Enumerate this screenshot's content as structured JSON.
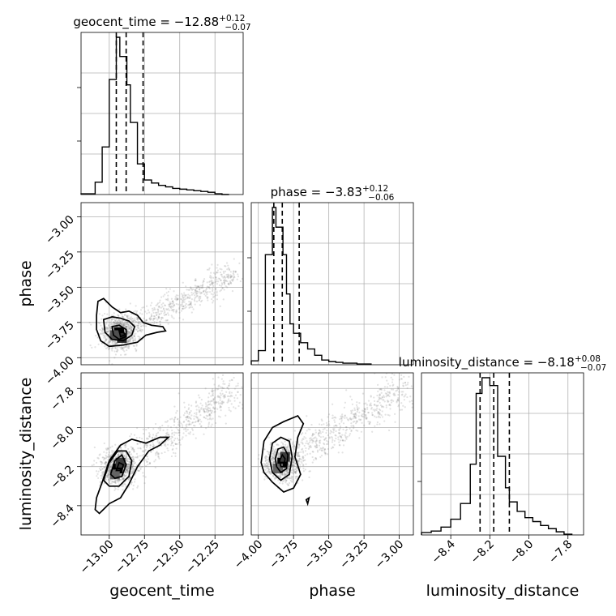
{
  "chart_data": {
    "type": "corner",
    "parameters": [
      "geocent_time",
      "phase",
      "luminosity_distance"
    ],
    "axis_labels": {
      "geocent_time": "geocent_time",
      "phase": "phase",
      "luminosity_distance": "luminosity_distance"
    },
    "titles": [
      {
        "name": "geocent_time",
        "base": "geocent_time = −12.88",
        "plus": "+0.12",
        "minus": "−0.07"
      },
      {
        "name": "phase",
        "base": "phase = −3.83",
        "plus": "+0.12",
        "minus": "−0.06"
      },
      {
        "name": "luminosity_distance",
        "base": "luminosity_distance = −8.18",
        "plus": "+0.08",
        "minus": "−0.07"
      }
    ],
    "ranges": {
      "geocent_time": [
        -13.2,
        -12.05
      ],
      "phase": [
        -4.05,
        -2.9
      ],
      "luminosity_distance": [
        -8.55,
        -7.72
      ]
    },
    "ticks": {
      "geocent_time": [
        {
          "value": -13.0,
          "label": "−13.00"
        },
        {
          "value": -12.75,
          "label": "−12.75"
        },
        {
          "value": -12.5,
          "label": "−12.50"
        },
        {
          "value": -12.25,
          "label": "−12.25"
        }
      ],
      "phase": [
        {
          "value": -4.0,
          "label": "−4.00"
        },
        {
          "value": -3.75,
          "label": "−3.75"
        },
        {
          "value": -3.5,
          "label": "−3.50"
        },
        {
          "value": -3.25,
          "label": "−3.25"
        },
        {
          "value": -3.0,
          "label": "−3.00"
        }
      ],
      "luminosity_distance": [
        {
          "value": -8.4,
          "label": "−8.4"
        },
        {
          "value": -8.2,
          "label": "−8.2"
        },
        {
          "value": -8.0,
          "label": "−8.0"
        },
        {
          "value": -7.8,
          "label": "−7.8"
        }
      ]
    },
    "quantiles": {
      "geocent_time": [
        -12.95,
        -12.88,
        -12.76
      ],
      "phase": [
        -3.89,
        -3.83,
        -3.71
      ],
      "luminosity_distance": [
        -8.25,
        -8.18,
        -8.1
      ]
    },
    "histograms": {
      "geocent_time": {
        "edges": [
          -13.2,
          -13.1,
          -13.05,
          -13.0,
          -12.95,
          -12.925,
          -12.875,
          -12.85,
          -12.8,
          -12.75,
          -12.7,
          -12.65,
          -12.6,
          -12.55,
          -12.5,
          -12.45,
          -12.4,
          -12.35,
          -12.3,
          -12.25,
          -12.2,
          -12.15
        ],
        "counts": [
          1,
          16,
          62,
          150,
          205,
          180,
          143,
          94,
          40,
          19,
          15,
          12,
          10,
          8,
          7,
          6,
          5,
          4,
          3,
          1,
          0
        ]
      },
      "phase": {
        "edges": [
          -4.05,
          -4.0,
          -3.95,
          -3.9,
          -3.875,
          -3.825,
          -3.8,
          -3.775,
          -3.75,
          -3.7,
          -3.65,
          -3.6,
          -3.55,
          -3.5,
          -3.45,
          -3.4,
          -3.35,
          -3.3,
          -3.25,
          -3.2
        ],
        "counts": [
          5,
          18,
          140,
          200,
          175,
          140,
          90,
          52,
          40,
          28,
          20,
          12,
          6,
          4,
          3,
          2,
          2,
          1,
          1
        ]
      },
      "luminosity_distance": {
        "edges": [
          -8.55,
          -8.5,
          -8.45,
          -8.4,
          -8.35,
          -8.3,
          -8.27,
          -8.24,
          -8.2,
          -8.16,
          -8.12,
          -8.1,
          -8.06,
          -8.02,
          -7.98,
          -7.94,
          -7.9,
          -7.86,
          -7.82,
          -7.78
        ],
        "counts": [
          3,
          5,
          10,
          20,
          40,
          90,
          180,
          200,
          190,
          100,
          60,
          42,
          30,
          22,
          17,
          12,
          8,
          4,
          1
        ]
      }
    },
    "contours": {
      "geocent_time|phase": [
        [
          [
            -13.08,
            -3.6
          ],
          [
            -13.04,
            -3.58
          ],
          [
            -12.98,
            -3.64
          ],
          [
            -12.92,
            -3.68
          ],
          [
            -12.86,
            -3.67
          ],
          [
            -12.8,
            -3.7
          ],
          [
            -12.76,
            -3.75
          ],
          [
            -12.7,
            -3.77
          ],
          [
            -12.62,
            -3.78
          ],
          [
            -12.6,
            -3.81
          ],
          [
            -12.66,
            -3.82
          ],
          [
            -12.74,
            -3.84
          ],
          [
            -12.8,
            -3.89
          ],
          [
            -12.9,
            -3.91
          ],
          [
            -13.0,
            -3.92
          ],
          [
            -13.06,
            -3.88
          ],
          [
            -13.09,
            -3.8
          ],
          [
            -13.09,
            -3.7
          ]
        ],
        [
          [
            -13.04,
            -3.73
          ],
          [
            -12.98,
            -3.71
          ],
          [
            -12.92,
            -3.72
          ],
          [
            -12.86,
            -3.74
          ],
          [
            -12.82,
            -3.78
          ],
          [
            -12.84,
            -3.84
          ],
          [
            -12.9,
            -3.88
          ],
          [
            -12.98,
            -3.87
          ],
          [
            -13.03,
            -3.82
          ]
        ],
        [
          [
            -12.98,
            -3.78
          ],
          [
            -12.93,
            -3.77
          ],
          [
            -12.88,
            -3.8
          ],
          [
            -12.88,
            -3.85
          ],
          [
            -12.93,
            -3.87
          ],
          [
            -12.97,
            -3.84
          ]
        ],
        [
          [
            -12.93,
            -3.81
          ],
          [
            -12.9,
            -3.81
          ],
          [
            -12.89,
            -3.84
          ],
          [
            -12.92,
            -3.85
          ]
        ]
      ],
      "geocent_time|luminosity_distance": [
        [
          [
            -13.1,
            -8.42
          ],
          [
            -13.09,
            -8.36
          ],
          [
            -13.05,
            -8.28
          ],
          [
            -13.0,
            -8.17
          ],
          [
            -12.92,
            -8.09
          ],
          [
            -12.84,
            -8.06
          ],
          [
            -12.74,
            -8.08
          ],
          [
            -12.64,
            -8.05
          ],
          [
            -12.58,
            -8.05
          ],
          [
            -12.64,
            -8.09
          ],
          [
            -12.72,
            -8.12
          ],
          [
            -12.8,
            -8.2
          ],
          [
            -12.86,
            -8.29
          ],
          [
            -12.92,
            -8.36
          ],
          [
            -13.0,
            -8.39
          ],
          [
            -13.07,
            -8.44
          ]
        ],
        [
          [
            -13.04,
            -8.27
          ],
          [
            -13.0,
            -8.18
          ],
          [
            -12.94,
            -8.12
          ],
          [
            -12.88,
            -8.12
          ],
          [
            -12.84,
            -8.17
          ],
          [
            -12.86,
            -8.25
          ],
          [
            -12.93,
            -8.3
          ],
          [
            -13.0,
            -8.3
          ]
        ],
        [
          [
            -12.99,
            -8.24
          ],
          [
            -12.96,
            -8.17
          ],
          [
            -12.91,
            -8.14
          ],
          [
            -12.88,
            -8.19
          ],
          [
            -12.91,
            -8.25
          ],
          [
            -12.96,
            -8.26
          ]
        ],
        [
          [
            -12.95,
            -8.22
          ],
          [
            -12.93,
            -8.18
          ],
          [
            -12.9,
            -8.19
          ],
          [
            -12.91,
            -8.22
          ]
        ]
      ],
      "phase|luminosity_distance": [
        [
          [
            -3.98,
            -8.18
          ],
          [
            -3.96,
            -8.07
          ],
          [
            -3.9,
            -8.0
          ],
          [
            -3.82,
            -7.97
          ],
          [
            -3.72,
            -7.94
          ],
          [
            -3.68,
            -7.98
          ],
          [
            -3.72,
            -8.05
          ],
          [
            -3.74,
            -8.15
          ],
          [
            -3.7,
            -8.24
          ],
          [
            -3.75,
            -8.31
          ],
          [
            -3.82,
            -8.33
          ],
          [
            -3.9,
            -8.28
          ],
          [
            -3.96,
            -8.23
          ]
        ],
        [
          [
            -3.92,
            -8.16
          ],
          [
            -3.9,
            -8.08
          ],
          [
            -3.84,
            -8.05
          ],
          [
            -3.78,
            -8.07
          ],
          [
            -3.76,
            -8.15
          ],
          [
            -3.78,
            -8.24
          ],
          [
            -3.84,
            -8.27
          ],
          [
            -3.9,
            -8.23
          ]
        ],
        [
          [
            -3.88,
            -8.16
          ],
          [
            -3.86,
            -8.11
          ],
          [
            -3.82,
            -8.1
          ],
          [
            -3.79,
            -8.14
          ],
          [
            -3.8,
            -8.21
          ],
          [
            -3.84,
            -8.23
          ],
          [
            -3.87,
            -8.2
          ]
        ],
        [
          [
            -3.85,
            -8.17
          ],
          [
            -3.83,
            -8.14
          ],
          [
            -3.81,
            -8.16
          ],
          [
            -3.82,
            -8.2
          ],
          [
            -3.84,
            -8.2
          ]
        ],
        [
          [
            -3.66,
            -8.37
          ],
          [
            -3.64,
            -8.36
          ],
          [
            -3.65,
            -8.39
          ]
        ]
      ]
    },
    "density_peaks": {
      "geocent_time|phase": [
        [
          -12.93,
          -3.82,
          1.0
        ],
        [
          -12.91,
          -3.86,
          0.8
        ],
        [
          -12.96,
          -3.84,
          0.6
        ]
      ],
      "geocent_time|luminosity_distance": [
        [
          -12.94,
          -8.21,
          1.0
        ],
        [
          -12.92,
          -8.18,
          0.7
        ],
        [
          -12.96,
          -8.24,
          0.5
        ]
      ],
      "phase|luminosity_distance": [
        [
          -3.83,
          -8.18,
          1.0
        ],
        [
          -3.81,
          -8.15,
          0.7
        ],
        [
          -3.86,
          -8.21,
          0.5
        ]
      ]
    }
  }
}
